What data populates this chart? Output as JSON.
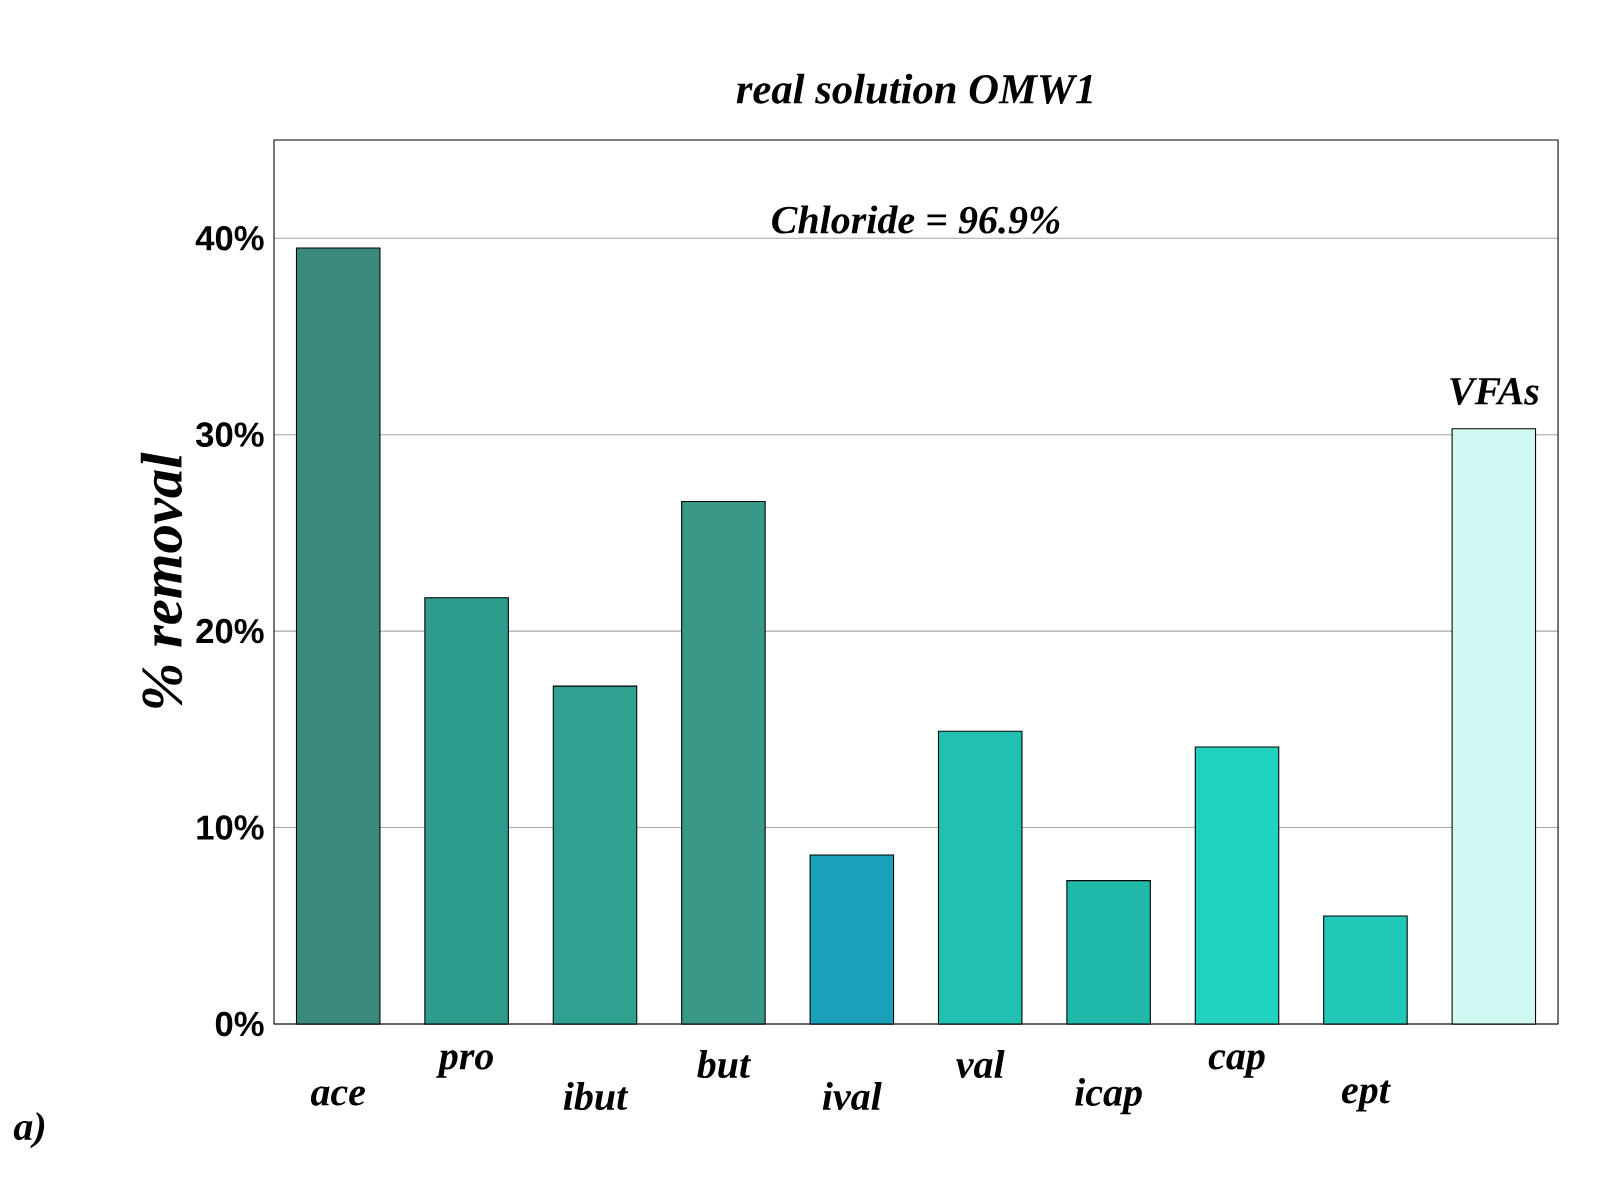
{
  "chart_data": {
    "type": "bar",
    "title": "real solution OMW1",
    "ylabel": "% removal",
    "categories": [
      "ace",
      "pro",
      "ibut",
      "but",
      "ival",
      "val",
      "icap",
      "cap",
      "ept",
      null
    ],
    "values": [
      39.5,
      21.7,
      17.2,
      26.6,
      8.6,
      14.9,
      7.3,
      14.1,
      5.5,
      30.3
    ],
    "colors": [
      "#3a8a7c",
      "#2e9c8c",
      "#30a090",
      "#3a9888",
      "#1aa0b8",
      "#22c0b0",
      "#20b8a8",
      "#22d2c0",
      "#22c8b8",
      "#d2f8f4"
    ],
    "ylim": [
      0,
      45
    ],
    "yticks": [
      {
        "value": 0,
        "label": "0%"
      },
      {
        "value": 10,
        "label": "10%"
      },
      {
        "value": 20,
        "label": "20%"
      },
      {
        "value": 30,
        "label": "30%"
      },
      {
        "value": 40,
        "label": "40%"
      }
    ],
    "grid": "y",
    "annotations": [
      "Chloride = 96.9%",
      "a)",
      "VFAs"
    ]
  }
}
